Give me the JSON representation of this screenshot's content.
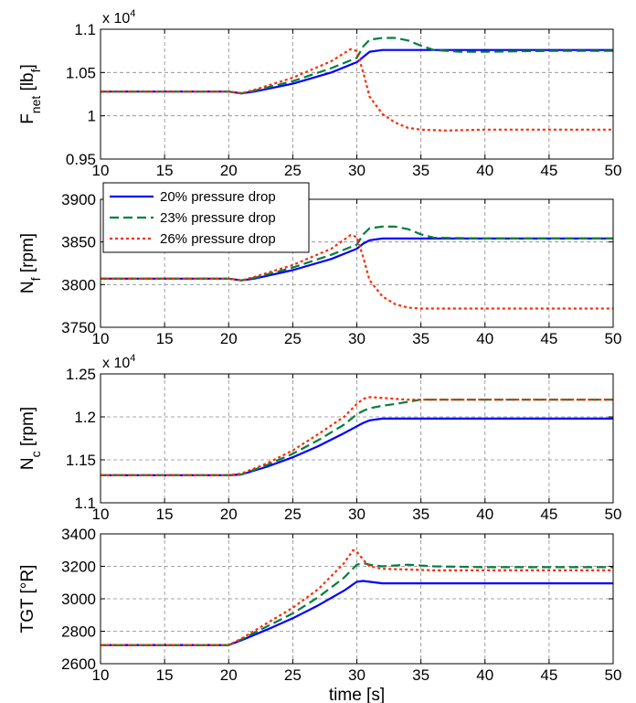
{
  "chart_data": [
    {
      "type": "line",
      "ylabel": "F_net [lb_f]",
      "ylabel_parts": {
        "main": "F",
        "sub1": "net",
        "mid": " [lb",
        "sub2": "f",
        "end": "]"
      },
      "multiplier": {
        "base": "x 10",
        "exp": "4"
      },
      "xlim": [
        10,
        50
      ],
      "ylim": [
        0.95,
        1.1
      ],
      "xticks": [
        "10",
        "15",
        "20",
        "25",
        "30",
        "35",
        "40",
        "45",
        "50"
      ],
      "yticks": [
        "0.95",
        "1",
        "1.05",
        "1.1"
      ],
      "grid": true,
      "series": [
        {
          "name": "20% pressure drop",
          "x": [
            10,
            20,
            21,
            22,
            25,
            28,
            30,
            30.5,
            31,
            32,
            35,
            40,
            45,
            50
          ],
          "y": [
            1.028,
            1.028,
            1.026,
            1.028,
            1.037,
            1.05,
            1.062,
            1.068,
            1.074,
            1.076,
            1.076,
            1.076,
            1.076,
            1.076
          ]
        },
        {
          "name": "23% pressure drop",
          "x": [
            10,
            20,
            21,
            22,
            25,
            28,
            30,
            30.5,
            31,
            32,
            33,
            34,
            35,
            36,
            38,
            40,
            45,
            50
          ],
          "y": [
            1.028,
            1.028,
            1.026,
            1.029,
            1.04,
            1.055,
            1.067,
            1.08,
            1.088,
            1.09,
            1.09,
            1.087,
            1.081,
            1.076,
            1.074,
            1.074,
            1.075,
            1.075
          ]
        },
        {
          "name": "26% pressure drop",
          "x": [
            10,
            20,
            21,
            22,
            25,
            28,
            29.5,
            30,
            30.5,
            31,
            32,
            33,
            34,
            35,
            37,
            40,
            45,
            50
          ],
          "y": [
            1.028,
            1.028,
            1.026,
            1.03,
            1.044,
            1.063,
            1.077,
            1.075,
            1.05,
            1.022,
            1.002,
            0.992,
            0.986,
            0.984,
            0.983,
            0.984,
            0.984,
            0.984
          ]
        }
      ]
    },
    {
      "type": "line",
      "ylabel": "N_f [rpm]",
      "ylabel_parts": {
        "main": "N",
        "sub1": "f",
        "mid": " [rpm]",
        "sub2": "",
        "end": ""
      },
      "xlim": [
        10,
        50
      ],
      "ylim": [
        3750,
        3900
      ],
      "xticks": [
        "10",
        "15",
        "20",
        "25",
        "30",
        "35",
        "40",
        "45",
        "50"
      ],
      "yticks": [
        "3750",
        "3800",
        "3850",
        "3900"
      ],
      "grid": true,
      "legend": {
        "position": "top-left",
        "entries": [
          "20% pressure drop",
          "23% pressure drop",
          "26% pressure drop"
        ]
      },
      "series": [
        {
          "name": "20% pressure drop",
          "x": [
            10,
            20,
            21,
            22,
            25,
            28,
            30,
            30.5,
            31,
            32,
            35,
            40,
            45,
            50
          ],
          "y": [
            3807,
            3807,
            3805,
            3807,
            3817,
            3830,
            3842,
            3848,
            3852,
            3854,
            3854,
            3854,
            3854,
            3854
          ]
        },
        {
          "name": "23% pressure drop",
          "x": [
            10,
            20,
            21,
            22,
            25,
            28,
            30,
            30.5,
            31,
            32,
            33,
            34,
            35,
            36,
            40,
            45,
            50
          ],
          "y": [
            3807,
            3807,
            3805,
            3808,
            3820,
            3835,
            3847,
            3859,
            3866,
            3868,
            3868,
            3865,
            3859,
            3855,
            3854,
            3854,
            3854
          ]
        },
        {
          "name": "26% pressure drop",
          "x": [
            10,
            20,
            21,
            22,
            25,
            28,
            29.5,
            30,
            30.5,
            31,
            32,
            33,
            34,
            35,
            37,
            40,
            45,
            50
          ],
          "y": [
            3807,
            3807,
            3805,
            3809,
            3823,
            3842,
            3858,
            3856,
            3832,
            3805,
            3786,
            3777,
            3773,
            3772,
            3772,
            3772,
            3772,
            3772
          ]
        }
      ]
    },
    {
      "type": "line",
      "ylabel": "N_c [rpm]",
      "ylabel_parts": {
        "main": "N",
        "sub1": "c",
        "mid": " [rpm]",
        "sub2": "",
        "end": ""
      },
      "multiplier": {
        "base": "x 10",
        "exp": "4"
      },
      "xlim": [
        10,
        50
      ],
      "ylim": [
        1.1,
        1.25
      ],
      "xticks": [
        "10",
        "15",
        "20",
        "25",
        "30",
        "35",
        "40",
        "45",
        "50"
      ],
      "yticks": [
        "1.1",
        "1.15",
        "1.2",
        "1.25"
      ],
      "grid": true,
      "series": [
        {
          "name": "20% pressure drop",
          "x": [
            10,
            20,
            21,
            23,
            25,
            27,
            29,
            30,
            30.5,
            31,
            32,
            35,
            40,
            45,
            50
          ],
          "y": [
            1.132,
            1.132,
            1.133,
            1.142,
            1.153,
            1.166,
            1.181,
            1.189,
            1.193,
            1.196,
            1.198,
            1.198,
            1.198,
            1.198,
            1.198
          ]
        },
        {
          "name": "23% pressure drop",
          "x": [
            10,
            20,
            21,
            23,
            25,
            27,
            29,
            30,
            30.5,
            31,
            32,
            33,
            35,
            37,
            40,
            45,
            50
          ],
          "y": [
            1.132,
            1.132,
            1.133,
            1.144,
            1.157,
            1.173,
            1.191,
            1.203,
            1.207,
            1.21,
            1.213,
            1.215,
            1.22,
            1.22,
            1.22,
            1.22,
            1.22
          ]
        },
        {
          "name": "26% pressure drop",
          "x": [
            10,
            20,
            21,
            23,
            25,
            27,
            29,
            30,
            30.5,
            31,
            32,
            33,
            34,
            36,
            40,
            45,
            50
          ],
          "y": [
            1.132,
            1.132,
            1.134,
            1.146,
            1.161,
            1.18,
            1.2,
            1.215,
            1.221,
            1.223,
            1.222,
            1.221,
            1.22,
            1.22,
            1.22,
            1.22,
            1.22
          ]
        }
      ]
    },
    {
      "type": "line",
      "ylabel": "TGT [°R]",
      "ylabel_parts": {
        "main": "TGT [°R]",
        "sub1": "",
        "mid": "",
        "sub2": "",
        "end": ""
      },
      "xlabel": "time [s]",
      "xlim": [
        10,
        50
      ],
      "ylim": [
        2600,
        3400
      ],
      "xticks": [
        "10",
        "15",
        "20",
        "25",
        "30",
        "35",
        "40",
        "45",
        "50"
      ],
      "yticks": [
        "2600",
        "2800",
        "3000",
        "3200",
        "3400"
      ],
      "grid": true,
      "series": [
        {
          "name": "20% pressure drop",
          "x": [
            10,
            20,
            21,
            23,
            25,
            27,
            29,
            30,
            30.5,
            31,
            32,
            35,
            40,
            45,
            50
          ],
          "y": [
            2715,
            2715,
            2745,
            2810,
            2880,
            2960,
            3050,
            3105,
            3110,
            3105,
            3095,
            3095,
            3095,
            3095,
            3095
          ]
        },
        {
          "name": "23% pressure drop",
          "x": [
            10,
            20,
            21,
            23,
            25,
            27,
            29,
            30,
            30.5,
            31,
            32,
            34,
            36,
            40,
            45,
            50
          ],
          "y": [
            2715,
            2715,
            2750,
            2830,
            2910,
            3010,
            3130,
            3210,
            3220,
            3210,
            3200,
            3210,
            3200,
            3195,
            3195,
            3195
          ]
        },
        {
          "name": "26% pressure drop",
          "x": [
            10,
            20,
            21,
            23,
            25,
            27,
            29,
            29.7,
            30,
            30.5,
            31,
            32,
            34,
            36,
            40,
            45,
            50
          ],
          "y": [
            2715,
            2715,
            2755,
            2850,
            2945,
            3060,
            3220,
            3300,
            3290,
            3240,
            3200,
            3185,
            3180,
            3175,
            3175,
            3175,
            3175
          ]
        }
      ]
    }
  ],
  "colors": {
    "series1": "#0000ff",
    "series2": "#007f3f",
    "series3": "#ff2a00",
    "grid": "#888888",
    "axis": "#000000"
  },
  "dash": {
    "series1": "",
    "series2": "10,5",
    "series3": "3,3"
  }
}
